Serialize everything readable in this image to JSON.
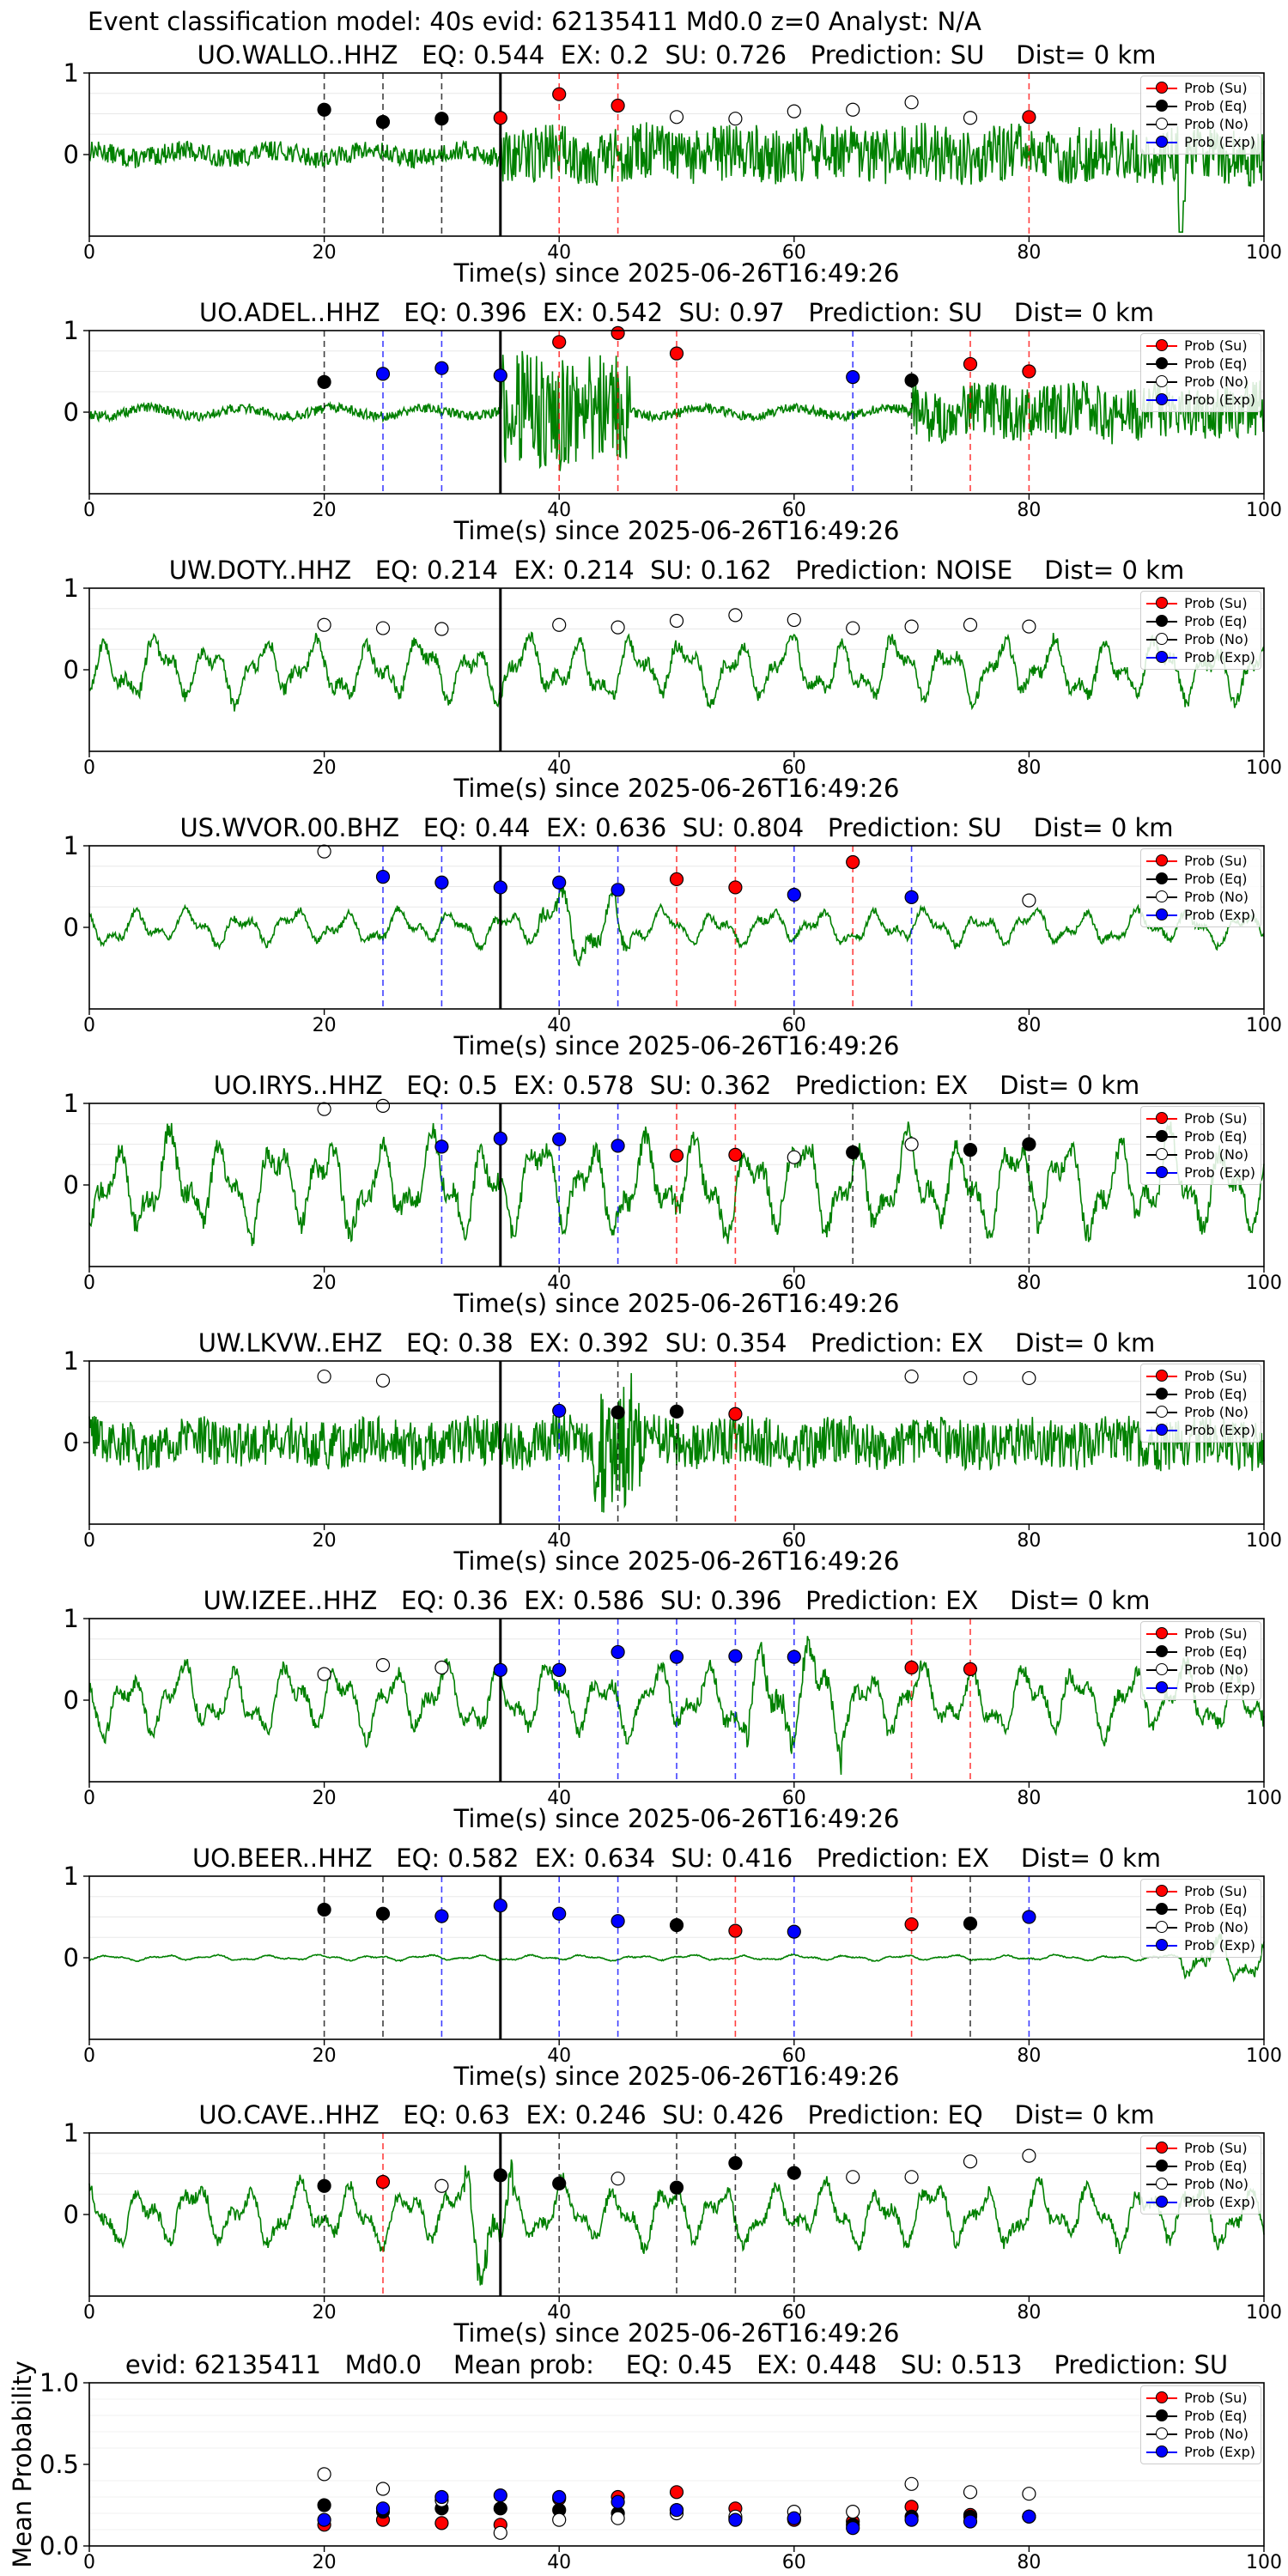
{
  "figure_title": "Event classification model: 40s evid: 62135411 Md0.0 z=0 Analyst: N/A",
  "colors": {
    "waveform": "#008000",
    "prob_su": "#ff0000",
    "prob_eq": "#000000",
    "prob_no": "#ffffff",
    "prob_exp": "#0000ff",
    "line_su": "#ff0000",
    "line_eq": "#000000",
    "line_exp": "#0000ff",
    "origin_line": "#000000"
  },
  "legend": [
    "Prob (Su)",
    "Prob (Eq)",
    "Prob (No)",
    "Prob (Exp)"
  ],
  "chart_data": [
    {
      "type": "line",
      "title": "UO.WALLO..HHZ   EQ: 0.544  EX: 0.2  SU: 0.726   Prediction: SU    Dist= 0 km",
      "xlabel": "Time(s) since 2025-06-26T16:49:26",
      "xlim": [
        0,
        100
      ],
      "xticks": [
        "0",
        "20",
        "40",
        "60",
        "80",
        "100"
      ],
      "ylim": [
        -1,
        1
      ],
      "yticks": [
        "1",
        "0"
      ],
      "origin_time": 35,
      "waveform": {
        "amplitude": 0.12,
        "style": "noise",
        "late_amplitude": 0.35,
        "late_start": 35,
        "spike_at": 93
      },
      "points": [
        {
          "x": 20,
          "y": 0.55,
          "class": "Eq"
        },
        {
          "x": 25,
          "y": 0.4,
          "class": "Eq"
        },
        {
          "x": 30,
          "y": 0.44,
          "class": "Eq"
        },
        {
          "x": 35,
          "y": 0.45,
          "class": "Su"
        },
        {
          "x": 40,
          "y": 0.74,
          "class": "Su"
        },
        {
          "x": 45,
          "y": 0.6,
          "class": "Su"
        },
        {
          "x": 50,
          "y": 0.46,
          "class": "No"
        },
        {
          "x": 55,
          "y": 0.44,
          "class": "No"
        },
        {
          "x": 60,
          "y": 0.53,
          "class": "No"
        },
        {
          "x": 65,
          "y": 0.55,
          "class": "No"
        },
        {
          "x": 70,
          "y": 0.64,
          "class": "No"
        },
        {
          "x": 75,
          "y": 0.45,
          "class": "No"
        },
        {
          "x": 80,
          "y": 0.46,
          "class": "Su"
        }
      ]
    },
    {
      "type": "line",
      "title": "UO.ADEL..HHZ   EQ: 0.396  EX: 0.542  SU: 0.97   Prediction: SU    Dist= 0 km",
      "xlabel": "Time(s) since 2025-06-26T16:49:26",
      "xlim": [
        0,
        100
      ],
      "xticks": [
        "0",
        "20",
        "40",
        "60",
        "80",
        "100"
      ],
      "ylim": [
        -1,
        1
      ],
      "yticks": [
        "1",
        "0"
      ],
      "origin_time": 35,
      "waveform": {
        "amplitude": 0.06,
        "style": "noise",
        "burst_start": 35,
        "burst_end": 46,
        "burst_amplitude": 0.7,
        "late_amplitude": 0.35,
        "late_start": 70
      },
      "points": [
        {
          "x": 20,
          "y": 0.37,
          "class": "Eq"
        },
        {
          "x": 25,
          "y": 0.47,
          "class": "Exp"
        },
        {
          "x": 30,
          "y": 0.54,
          "class": "Exp"
        },
        {
          "x": 35,
          "y": 0.45,
          "class": "Exp"
        },
        {
          "x": 40,
          "y": 0.86,
          "class": "Su"
        },
        {
          "x": 45,
          "y": 0.97,
          "class": "Su"
        },
        {
          "x": 50,
          "y": 0.72,
          "class": "Su"
        },
        {
          "x": 65,
          "y": 0.43,
          "class": "Exp"
        },
        {
          "x": 70,
          "y": 0.39,
          "class": "Eq"
        },
        {
          "x": 75,
          "y": 0.59,
          "class": "Su"
        },
        {
          "x": 80,
          "y": 0.5,
          "class": "Su"
        }
      ]
    },
    {
      "type": "line",
      "title": "UW.DOTY..HHZ   EQ: 0.214  EX: 0.214  SU: 0.162   Prediction: NOISE    Dist= 0 km",
      "xlabel": "Time(s) since 2025-06-26T16:49:26",
      "xlim": [
        0,
        100
      ],
      "xticks": [
        "0",
        "20",
        "40",
        "60",
        "80",
        "100"
      ],
      "ylim": [
        -1,
        1
      ],
      "yticks": [
        "1",
        "0"
      ],
      "origin_time": 35,
      "waveform": {
        "amplitude": 0.45,
        "style": "wavy"
      },
      "points": [
        {
          "x": 20,
          "y": 0.55,
          "class": "No"
        },
        {
          "x": 25,
          "y": 0.51,
          "class": "No"
        },
        {
          "x": 30,
          "y": 0.5,
          "class": "No"
        },
        {
          "x": 40,
          "y": 0.55,
          "class": "No"
        },
        {
          "x": 45,
          "y": 0.52,
          "class": "No"
        },
        {
          "x": 50,
          "y": 0.6,
          "class": "No"
        },
        {
          "x": 55,
          "y": 0.67,
          "class": "No"
        },
        {
          "x": 60,
          "y": 0.61,
          "class": "No"
        },
        {
          "x": 65,
          "y": 0.51,
          "class": "No"
        },
        {
          "x": 70,
          "y": 0.53,
          "class": "No"
        },
        {
          "x": 75,
          "y": 0.55,
          "class": "No"
        },
        {
          "x": 80,
          "y": 0.53,
          "class": "No"
        }
      ]
    },
    {
      "type": "line",
      "title": "US.WVOR.00.BHZ   EQ: 0.44  EX: 0.636  SU: 0.804   Prediction: SU    Dist= 0 km",
      "xlabel": "Time(s) since 2025-06-26T16:49:26",
      "xlim": [
        0,
        100
      ],
      "xticks": [
        "0",
        "20",
        "40",
        "60",
        "80",
        "100"
      ],
      "ylim": [
        -1,
        1
      ],
      "yticks": [
        "1",
        "0"
      ],
      "origin_time": 35,
      "waveform": {
        "amplitude": 0.25,
        "style": "wavy",
        "burst_start": 38,
        "burst_end": 46,
        "burst_amplitude": 0.55
      },
      "points": [
        {
          "x": 20,
          "y": 0.93,
          "class": "No"
        },
        {
          "x": 25,
          "y": 0.62,
          "class": "Exp"
        },
        {
          "x": 30,
          "y": 0.55,
          "class": "Exp"
        },
        {
          "x": 35,
          "y": 0.49,
          "class": "Exp"
        },
        {
          "x": 40,
          "y": 0.55,
          "class": "Exp"
        },
        {
          "x": 45,
          "y": 0.46,
          "class": "Exp"
        },
        {
          "x": 50,
          "y": 0.59,
          "class": "Su"
        },
        {
          "x": 55,
          "y": 0.49,
          "class": "Su"
        },
        {
          "x": 60,
          "y": 0.4,
          "class": "Exp"
        },
        {
          "x": 65,
          "y": 0.8,
          "class": "Su"
        },
        {
          "x": 70,
          "y": 0.37,
          "class": "Exp"
        },
        {
          "x": 80,
          "y": 0.33,
          "class": "No"
        }
      ]
    },
    {
      "type": "line",
      "title": "UO.IRYS..HHZ   EQ: 0.5  EX: 0.578  SU: 0.362   Prediction: EX    Dist= 0 km",
      "xlabel": "Time(s) since 2025-06-26T16:49:26",
      "xlim": [
        0,
        100
      ],
      "xticks": [
        "0",
        "20",
        "40",
        "60",
        "80",
        "100"
      ],
      "ylim": [
        -1,
        1
      ],
      "yticks": [
        "1",
        "0"
      ],
      "origin_time": 35,
      "waveform": {
        "amplitude": 0.7,
        "style": "wavy"
      },
      "points": [
        {
          "x": 20,
          "y": 0.93,
          "class": "No"
        },
        {
          "x": 25,
          "y": 0.97,
          "class": "No"
        },
        {
          "x": 30,
          "y": 0.47,
          "class": "Exp"
        },
        {
          "x": 35,
          "y": 0.57,
          "class": "Exp"
        },
        {
          "x": 40,
          "y": 0.56,
          "class": "Exp"
        },
        {
          "x": 45,
          "y": 0.48,
          "class": "Exp"
        },
        {
          "x": 50,
          "y": 0.36,
          "class": "Su"
        },
        {
          "x": 55,
          "y": 0.37,
          "class": "Su"
        },
        {
          "x": 60,
          "y": 0.34,
          "class": "No"
        },
        {
          "x": 65,
          "y": 0.4,
          "class": "Eq"
        },
        {
          "x": 70,
          "y": 0.5,
          "class": "No"
        },
        {
          "x": 75,
          "y": 0.43,
          "class": "Eq"
        },
        {
          "x": 80,
          "y": 0.5,
          "class": "Eq"
        }
      ]
    },
    {
      "type": "line",
      "title": "UW.LKVW..EHZ   EQ: 0.38  EX: 0.392  SU: 0.354   Prediction: EX    Dist= 0 km",
      "xlabel": "Time(s) since 2025-06-26T16:49:26",
      "xlim": [
        0,
        100
      ],
      "xticks": [
        "0",
        "20",
        "40",
        "60",
        "80",
        "100"
      ],
      "ylim": [
        -1,
        1
      ],
      "yticks": [
        "1",
        "0"
      ],
      "origin_time": 35,
      "waveform": {
        "amplitude": 0.3,
        "style": "noise",
        "burst_start": 43,
        "burst_end": 47,
        "burst_amplitude": 0.9
      },
      "points": [
        {
          "x": 20,
          "y": 0.81,
          "class": "No"
        },
        {
          "x": 25,
          "y": 0.76,
          "class": "No"
        },
        {
          "x": 40,
          "y": 0.39,
          "class": "Exp"
        },
        {
          "x": 45,
          "y": 0.37,
          "class": "Eq"
        },
        {
          "x": 50,
          "y": 0.38,
          "class": "Eq"
        },
        {
          "x": 55,
          "y": 0.35,
          "class": "Su"
        },
        {
          "x": 70,
          "y": 0.81,
          "class": "No"
        },
        {
          "x": 75,
          "y": 0.79,
          "class": "No"
        },
        {
          "x": 80,
          "y": 0.79,
          "class": "No"
        }
      ]
    },
    {
      "type": "line",
      "title": "UW.IZEE..HHZ   EQ: 0.36  EX: 0.586  SU: 0.396   Prediction: EX    Dist= 0 km",
      "xlabel": "Time(s) since 2025-06-26T16:49:26",
      "xlim": [
        0,
        100
      ],
      "xticks": [
        "0",
        "20",
        "40",
        "60",
        "80",
        "100"
      ],
      "ylim": [
        -1,
        1
      ],
      "yticks": [
        "1",
        "0"
      ],
      "origin_time": 35,
      "waveform": {
        "amplitude": 0.5,
        "style": "wavy",
        "burst_start": 56,
        "burst_end": 64,
        "burst_amplitude": 0.85
      },
      "points": [
        {
          "x": 20,
          "y": 0.32,
          "class": "No"
        },
        {
          "x": 25,
          "y": 0.43,
          "class": "No"
        },
        {
          "x": 30,
          "y": 0.4,
          "class": "No"
        },
        {
          "x": 35,
          "y": 0.37,
          "class": "Exp"
        },
        {
          "x": 40,
          "y": 0.37,
          "class": "Exp"
        },
        {
          "x": 45,
          "y": 0.59,
          "class": "Exp"
        },
        {
          "x": 50,
          "y": 0.53,
          "class": "Exp"
        },
        {
          "x": 55,
          "y": 0.54,
          "class": "Exp"
        },
        {
          "x": 60,
          "y": 0.53,
          "class": "Exp"
        },
        {
          "x": 70,
          "y": 0.4,
          "class": "Su"
        },
        {
          "x": 75,
          "y": 0.38,
          "class": "Su"
        }
      ]
    },
    {
      "type": "line",
      "title": "UO.BEER..HHZ   EQ: 0.582  EX: 0.634  SU: 0.416   Prediction: EX    Dist= 0 km",
      "xlabel": "Time(s) since 2025-06-26T16:49:26",
      "xlim": [
        0,
        100
      ],
      "xticks": [
        "0",
        "20",
        "40",
        "60",
        "80",
        "100"
      ],
      "ylim": [
        -1,
        1
      ],
      "yticks": [
        "1",
        "0"
      ],
      "origin_time": 35,
      "waveform": {
        "amplitude": 0.04,
        "style": "wavy",
        "late_amplitude": 0.35,
        "late_start": 93
      },
      "points": [
        {
          "x": 20,
          "y": 0.59,
          "class": "Eq"
        },
        {
          "x": 25,
          "y": 0.54,
          "class": "Eq"
        },
        {
          "x": 30,
          "y": 0.51,
          "class": "Exp"
        },
        {
          "x": 35,
          "y": 0.64,
          "class": "Exp"
        },
        {
          "x": 40,
          "y": 0.54,
          "class": "Exp"
        },
        {
          "x": 45,
          "y": 0.45,
          "class": "Exp"
        },
        {
          "x": 50,
          "y": 0.4,
          "class": "Eq"
        },
        {
          "x": 55,
          "y": 0.33,
          "class": "Su"
        },
        {
          "x": 60,
          "y": 0.32,
          "class": "Exp"
        },
        {
          "x": 70,
          "y": 0.41,
          "class": "Su"
        },
        {
          "x": 75,
          "y": 0.42,
          "class": "Eq"
        },
        {
          "x": 80,
          "y": 0.5,
          "class": "Exp"
        }
      ]
    },
    {
      "type": "line",
      "title": "UO.CAVE..HHZ   EQ: 0.63  EX: 0.246  SU: 0.426   Prediction: EQ    Dist= 0 km",
      "xlabel": "Time(s) since 2025-06-26T16:49:26",
      "xlim": [
        0,
        100
      ],
      "xticks": [
        "0",
        "20",
        "40",
        "60",
        "80",
        "100"
      ],
      "ylim": [
        -1,
        1
      ],
      "yticks": [
        "1",
        "0"
      ],
      "origin_time": 35,
      "waveform": {
        "amplitude": 0.45,
        "style": "wavy",
        "burst_start": 32,
        "burst_end": 36,
        "burst_amplitude": 0.95
      },
      "points": [
        {
          "x": 20,
          "y": 0.35,
          "class": "Eq"
        },
        {
          "x": 25,
          "y": 0.4,
          "class": "Su"
        },
        {
          "x": 30,
          "y": 0.35,
          "class": "No"
        },
        {
          "x": 35,
          "y": 0.48,
          "class": "Eq"
        },
        {
          "x": 40,
          "y": 0.38,
          "class": "Eq"
        },
        {
          "x": 45,
          "y": 0.44,
          "class": "No"
        },
        {
          "x": 50,
          "y": 0.33,
          "class": "Eq"
        },
        {
          "x": 55,
          "y": 0.63,
          "class": "Eq"
        },
        {
          "x": 60,
          "y": 0.51,
          "class": "Eq"
        },
        {
          "x": 65,
          "y": 0.46,
          "class": "No"
        },
        {
          "x": 70,
          "y": 0.46,
          "class": "No"
        },
        {
          "x": 75,
          "y": 0.65,
          "class": "No"
        },
        {
          "x": 80,
          "y": 0.72,
          "class": "No"
        }
      ]
    },
    {
      "type": "scatter",
      "title": "evid: 62135411   Md0.0    Mean prob:    EQ: 0.45   EX: 0.448   SU: 0.513    Prediction: SU",
      "ylabel": "Mean Probability",
      "xlim": [
        0,
        100
      ],
      "xticks": [
        "0",
        "20",
        "40",
        "60",
        "80",
        "100"
      ],
      "ylim": [
        0,
        1
      ],
      "yticks": [
        "1.0",
        "0.5",
        "0.0"
      ],
      "x": [
        20,
        25,
        30,
        35,
        40,
        45,
        50,
        55,
        60,
        65,
        70,
        75,
        80
      ],
      "series": [
        {
          "name": "Prob (Su)",
          "class": "Su",
          "values": [
            0.13,
            0.16,
            0.14,
            0.13,
            0.29,
            0.3,
            0.33,
            0.23,
            0.16,
            0.15,
            0.24,
            0.19,
            0.18
          ]
        },
        {
          "name": "Prob (Eq)",
          "class": "Eq",
          "values": [
            0.25,
            0.21,
            0.23,
            0.23,
            0.22,
            0.2,
            0.22,
            0.17,
            0.17,
            0.13,
            0.18,
            0.18,
            0.18
          ]
        },
        {
          "name": "Prob (No)",
          "class": "No",
          "values": [
            0.44,
            0.35,
            0.28,
            0.08,
            0.16,
            0.17,
            0.2,
            0.18,
            0.21,
            0.21,
            0.38,
            0.33,
            0.32
          ]
        },
        {
          "name": "Prob (Exp)",
          "class": "Exp",
          "values": [
            0.16,
            0.23,
            0.3,
            0.31,
            0.3,
            0.27,
            0.22,
            0.16,
            0.17,
            0.11,
            0.16,
            0.15,
            0.18
          ]
        }
      ]
    }
  ]
}
